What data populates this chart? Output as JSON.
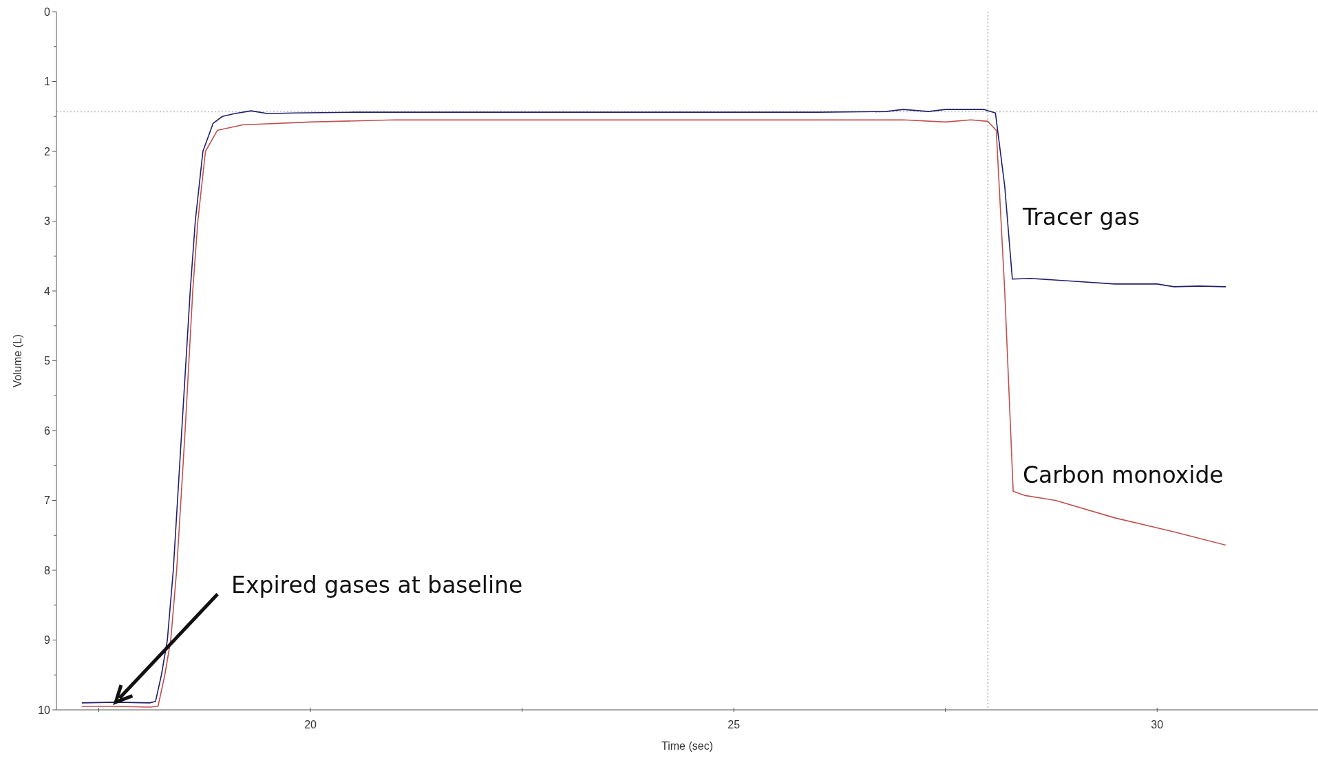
{
  "chart_data": {
    "type": "line",
    "xlabel": "Time (sec)",
    "ylabel": "Volume (L)",
    "xlim": [
      17,
      31.9
    ],
    "ylim": [
      10,
      0
    ],
    "xticks": [
      {
        "value": 17.5,
        "label": null
      },
      20,
      {
        "value": 22.5,
        "label": null
      },
      25,
      {
        "value": 27.5,
        "label": null
      },
      30
    ],
    "yticks": [
      0,
      {
        "value": 0.5,
        "label": null
      },
      1,
      {
        "value": 1.5,
        "label": null
      },
      2,
      {
        "value": 2.5,
        "label": null
      },
      3,
      {
        "value": 3.5,
        "label": null
      },
      4,
      {
        "value": 4.5,
        "label": null
      },
      5,
      {
        "value": 5.5,
        "label": null
      },
      6,
      {
        "value": 6.5,
        "label": null
      },
      7,
      {
        "value": 7.5,
        "label": null
      },
      8,
      {
        "value": 8.5,
        "label": null
      },
      9,
      {
        "value": 9.5,
        "label": null
      },
      10
    ],
    "grid": false,
    "legend": false,
    "marker": "none",
    "line_style": "solid",
    "series": [
      {
        "name": "Tracer gas",
        "color": "#1f1f6b",
        "x": [
          17.3,
          17.7,
          18.1,
          18.17,
          18.24,
          18.31,
          18.38,
          18.48,
          18.58,
          18.64,
          18.73,
          18.85,
          18.96,
          19.1,
          19.3,
          19.5,
          19.8,
          20.5,
          22,
          24,
          26,
          26.8,
          27.0,
          27.3,
          27.5,
          27.95,
          28.09,
          28.2,
          28.29,
          28.5,
          29,
          29.5,
          30,
          30.2,
          30.5,
          30.81
        ],
        "values": [
          9.9,
          9.89,
          9.9,
          9.88,
          9.5,
          9.0,
          8.0,
          6.0,
          4.0,
          3.0,
          2.0,
          1.6,
          1.5,
          1.46,
          1.42,
          1.46,
          1.45,
          1.44,
          1.44,
          1.44,
          1.44,
          1.43,
          1.4,
          1.43,
          1.4,
          1.4,
          1.45,
          2.5,
          3.83,
          3.82,
          3.86,
          3.9,
          3.9,
          3.94,
          3.93,
          3.94
        ]
      },
      {
        "name": "Carbon monoxide",
        "color": "#c0504d",
        "x": [
          17.3,
          17.7,
          18.1,
          18.2,
          18.28,
          18.35,
          18.42,
          18.52,
          18.61,
          18.67,
          18.76,
          18.9,
          19.2,
          20,
          21,
          23,
          25,
          27,
          27.5,
          27.8,
          28.0,
          28.1,
          28.2,
          28.3,
          28.44,
          28.8,
          29.5,
          30.2,
          30.81
        ],
        "values": [
          9.95,
          9.95,
          9.96,
          9.95,
          9.5,
          9.0,
          8.0,
          6.0,
          4.0,
          3.0,
          2.0,
          1.7,
          1.62,
          1.58,
          1.55,
          1.55,
          1.55,
          1.55,
          1.58,
          1.55,
          1.57,
          1.7,
          4.0,
          6.87,
          6.93,
          7.0,
          7.25,
          7.45,
          7.64
        ]
      }
    ],
    "ref_lines": [
      {
        "axis": "x",
        "value": 28.0,
        "color": "#c8c8c8",
        "line_style": "dotted"
      },
      {
        "axis": "y",
        "value": 1.43,
        "color": "#c8c8c8",
        "line_style": "dotted"
      }
    ],
    "annotations": [
      {
        "text": "Expired gases at baseline",
        "x": 17.7,
        "y": 9.89
      }
    ]
  }
}
